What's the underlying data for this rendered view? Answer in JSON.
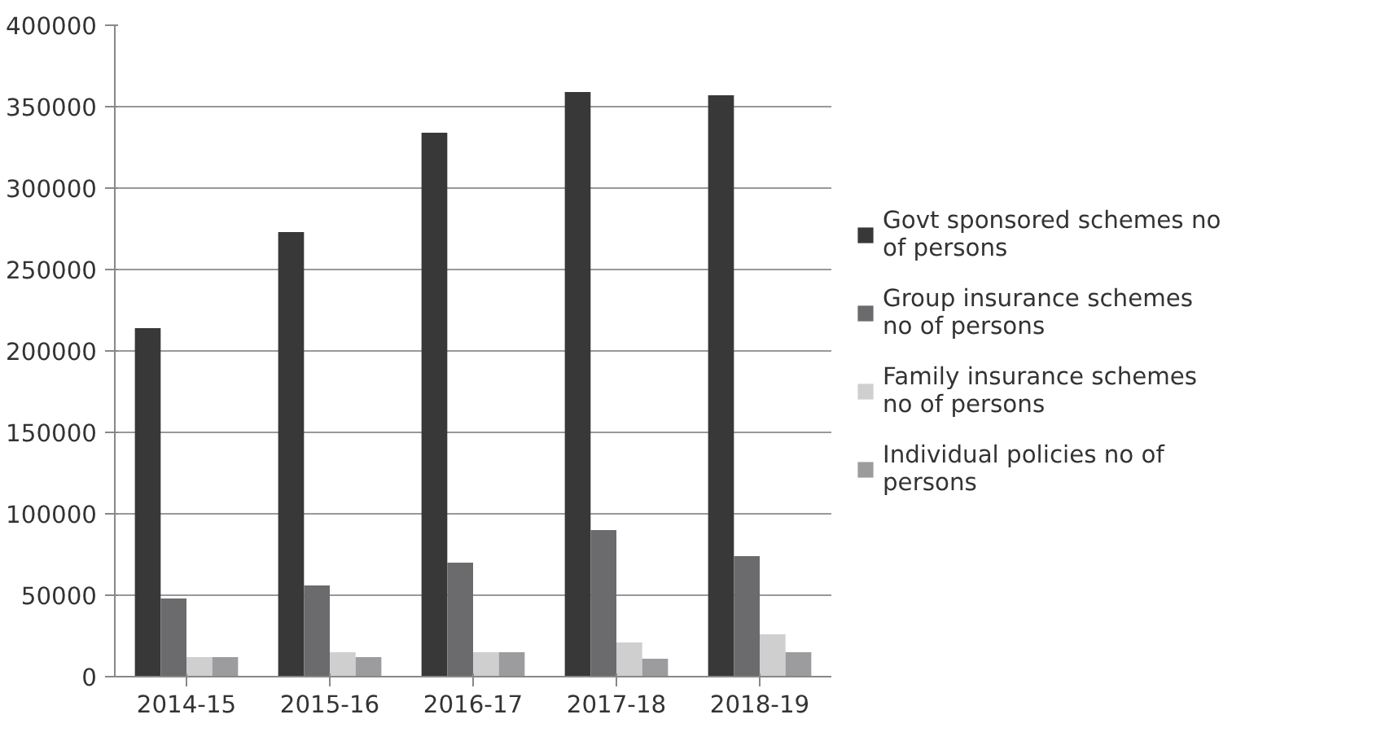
{
  "chart_data": {
    "type": "bar",
    "categories": [
      "2014-15",
      "2015-16",
      "2016-17",
      "2017-18",
      "2018-19"
    ],
    "series": [
      {
        "name": "Govt sponsored schemes no of persons",
        "color": "#383838",
        "values": [
          214000,
          273000,
          334000,
          359000,
          357000
        ]
      },
      {
        "name": "Group insurance schemes no of persons",
        "color": "#6b6b6d",
        "values": [
          48000,
          56000,
          70000,
          90000,
          74000
        ]
      },
      {
        "name": "Family insurance schemes no of persons",
        "color": "#cfcfcf",
        "values": [
          12000,
          15000,
          15000,
          21000,
          26000
        ]
      },
      {
        "name": "Individual policies no of persons",
        "color": "#9c9c9e",
        "values": [
          12000,
          12000,
          15000,
          11000,
          15000
        ]
      }
    ],
    "ylim": [
      0,
      400000
    ],
    "yticks": [
      0,
      50000,
      100000,
      150000,
      200000,
      250000,
      300000,
      350000,
      400000
    ],
    "grid": "y",
    "legend": "right"
  }
}
